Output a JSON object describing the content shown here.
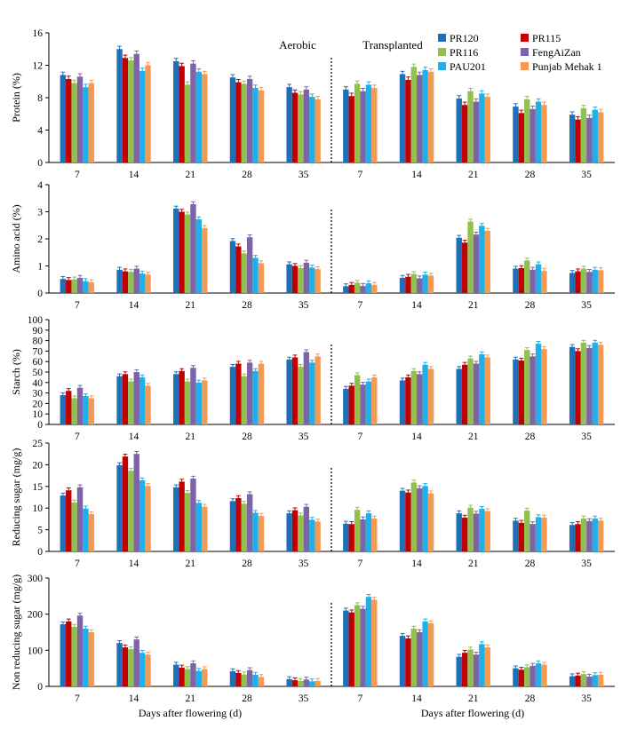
{
  "legend": [
    {
      "name": "PR120",
      "color": "#1f6fb8"
    },
    {
      "name": "PR115",
      "color": "#c00000"
    },
    {
      "name": "PR116",
      "color": "#92c050"
    },
    {
      "name": "FengAiZan",
      "color": "#7f63a8"
    },
    {
      "name": "PAU201",
      "color": "#1eb0e8"
    },
    {
      "name": "Punjab Mehak 1",
      "color": "#f59a55"
    }
  ],
  "headers": {
    "left": "Aerobic",
    "right": "Transplanted"
  },
  "xlabel": "Days after flowering (d)",
  "chart_data": [
    {
      "type": "bar",
      "ylabel": "Protein (%)",
      "ylim": [
        0,
        16
      ],
      "yticks": [
        0,
        4,
        8,
        12,
        16
      ],
      "categories": [
        "7",
        "14",
        "21",
        "28",
        "35"
      ],
      "aerobic": [
        [
          10.8,
          10.3,
          9.8,
          10.6,
          9.3,
          9.8
        ],
        [
          14.0,
          12.9,
          12.6,
          13.4,
          11.3,
          12.0
        ],
        [
          12.5,
          11.9,
          9.6,
          12.2,
          11.2,
          10.9
        ],
        [
          10.5,
          9.9,
          9.7,
          10.3,
          9.2,
          8.9
        ],
        [
          9.3,
          8.6,
          8.4,
          9.0,
          8.1,
          7.8
        ]
      ],
      "transplanted": [
        [
          9.0,
          8.2,
          9.7,
          8.8,
          9.6,
          9.2
        ],
        [
          10.9,
          10.2,
          11.8,
          10.8,
          11.4,
          11.2
        ],
        [
          7.9,
          7.1,
          8.8,
          7.5,
          8.5,
          8.1
        ],
        [
          6.9,
          6.1,
          7.8,
          6.6,
          7.5,
          7.1
        ],
        [
          5.9,
          5.3,
          6.7,
          5.5,
          6.5,
          6.2
        ]
      ]
    },
    {
      "type": "bar",
      "ylabel": "Amino acid (%)",
      "ylim": [
        0,
        4
      ],
      "yticks": [
        0,
        1,
        2,
        3,
        4
      ],
      "categories": [
        "7",
        "14",
        "21",
        "28",
        "35"
      ],
      "aerobic": [
        [
          0.52,
          0.48,
          0.5,
          0.56,
          0.44,
          0.4
        ],
        [
          0.86,
          0.8,
          0.78,
          0.9,
          0.72,
          0.68
        ],
        [
          3.12,
          3.0,
          2.9,
          3.28,
          2.72,
          2.4
        ],
        [
          1.92,
          1.72,
          1.46,
          2.06,
          1.3,
          1.1
        ],
        [
          1.06,
          1.0,
          0.92,
          1.12,
          0.94,
          0.88
        ]
      ],
      "transplanted": [
        [
          0.25,
          0.3,
          0.38,
          0.26,
          0.36,
          0.3
        ],
        [
          0.56,
          0.6,
          0.7,
          0.54,
          0.68,
          0.64
        ],
        [
          2.04,
          1.86,
          2.64,
          2.16,
          2.48,
          2.3
        ],
        [
          0.9,
          0.92,
          1.2,
          0.86,
          1.06,
          0.82
        ],
        [
          0.74,
          0.8,
          0.9,
          0.78,
          0.86,
          0.84
        ]
      ]
    },
    {
      "type": "bar",
      "ylabel": "Starch (%)",
      "ylim": [
        0,
        100
      ],
      "yticks": [
        0,
        10,
        20,
        30,
        40,
        50,
        60,
        70,
        80,
        90,
        100
      ],
      "categories": [
        "7",
        "14",
        "21",
        "28",
        "35"
      ],
      "aerobic": [
        [
          28,
          32,
          25,
          35,
          27,
          25
        ],
        [
          46,
          48,
          41,
          50,
          45,
          37
        ],
        [
          48,
          51,
          41,
          54,
          40,
          42
        ],
        [
          55,
          58,
          46,
          59,
          51,
          58
        ],
        [
          62,
          64,
          55,
          69,
          59,
          65
        ]
      ],
      "transplanted": [
        [
          34,
          37,
          47,
          38,
          41,
          45
        ],
        [
          42,
          45,
          51,
          48,
          57,
          53
        ],
        [
          53,
          57,
          63,
          58,
          67,
          64
        ],
        [
          62,
          61,
          71,
          65,
          77,
          72
        ],
        [
          74,
          70,
          78,
          73,
          78,
          76
        ]
      ]
    },
    {
      "type": "bar",
      "ylabel": "Reducing sugar (mg/g)",
      "ylim": [
        0,
        25
      ],
      "yticks": [
        0,
        5,
        10,
        15,
        20,
        25
      ],
      "categories": [
        "7",
        "14",
        "21",
        "28",
        "35"
      ],
      "aerobic": [
        [
          12.9,
          14.1,
          11.3,
          14.8,
          9.9,
          8.6
        ],
        [
          19.9,
          21.9,
          18.6,
          22.5,
          16.4,
          15.1
        ],
        [
          14.8,
          16.1,
          13.5,
          16.8,
          11.2,
          10.3
        ],
        [
          11.6,
          12.3,
          11.0,
          13.2,
          8.9,
          8.2
        ],
        [
          8.8,
          9.5,
          8.3,
          10.3,
          7.3,
          6.9
        ]
      ],
      "transplanted": [
        [
          6.4,
          6.3,
          9.6,
          7.4,
          8.8,
          7.6
        ],
        [
          14.0,
          13.6,
          15.9,
          14.6,
          15.1,
          13.4
        ],
        [
          8.8,
          7.8,
          10.1,
          8.7,
          9.8,
          9.3
        ],
        [
          7.1,
          6.6,
          9.4,
          6.3,
          7.9,
          7.8
        ],
        [
          6.1,
          6.3,
          7.6,
          7.0,
          7.6,
          7.1
        ]
      ]
    },
    {
      "type": "bar",
      "ylabel": "Non reducing sugar (mg/g)",
      "ylim": [
        0,
        300
      ],
      "yticks": [
        0,
        100,
        200,
        300
      ],
      "categories": [
        "7",
        "14",
        "21",
        "28",
        "35"
      ],
      "aerobic": [
        [
          172,
          180,
          165,
          196,
          160,
          150
        ],
        [
          120,
          108,
          103,
          130,
          93,
          88
        ],
        [
          60,
          52,
          48,
          64,
          43,
          48
        ],
        [
          42,
          37,
          33,
          45,
          32,
          26
        ],
        [
          20,
          17,
          15,
          19,
          14,
          15
        ]
      ],
      "transplanted": [
        [
          210,
          205,
          225,
          215,
          248,
          240
        ],
        [
          140,
          133,
          160,
          150,
          180,
          175
        ],
        [
          82,
          93,
          102,
          88,
          117,
          108
        ],
        [
          50,
          46,
          53,
          57,
          64,
          60
        ],
        [
          28,
          30,
          34,
          27,
          31,
          32
        ]
      ]
    }
  ]
}
